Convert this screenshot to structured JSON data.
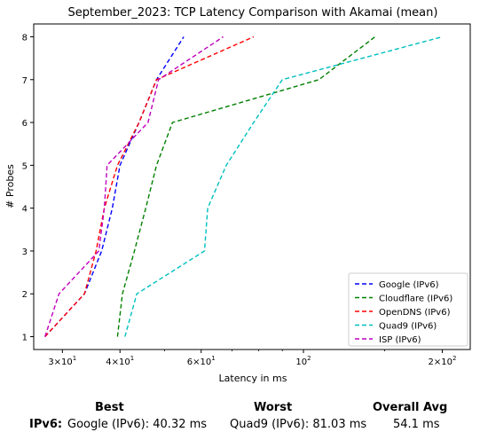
{
  "chart_data": {
    "type": "line",
    "title": "September_2023: TCP Latency Comparison with Akamai (mean)",
    "xlabel": "Latency in ms",
    "ylabel": "# Probes",
    "xscale": "log",
    "xlim": [
      26,
      230
    ],
    "ylim": [
      0.7,
      8.3
    ],
    "x_ticks": [
      {
        "value": 30,
        "base": "3",
        "exp": "1",
        "sep": "×10"
      },
      {
        "value": 40,
        "base": "4",
        "exp": "1",
        "sep": "×10"
      },
      {
        "value": 60,
        "base": "6",
        "exp": "1",
        "sep": "×10"
      },
      {
        "value": 100,
        "base": "10",
        "exp": "2",
        "sep": ""
      },
      {
        "value": 200,
        "base": "2",
        "exp": "2",
        "sep": "×10"
      }
    ],
    "y_ticks": [
      1,
      2,
      3,
      4,
      5,
      6,
      7,
      8
    ],
    "grid": false,
    "legend_position": "bottom-right",
    "series": [
      {
        "name": "Google (IPv6)",
        "color": "#0000ff",
        "x": [
          27.5,
          33.5,
          36.5,
          38.5,
          40.0,
          44.0,
          48.0,
          55.0
        ],
        "y": [
          1,
          2,
          3,
          4,
          5,
          6,
          7,
          8
        ]
      },
      {
        "name": "Cloudflare (IPv6)",
        "color": "#008000",
        "x": [
          39.5,
          40.5,
          43.0,
          45.5,
          48.0,
          52.0,
          108.0,
          143.0
        ],
        "y": [
          1,
          2,
          3,
          4,
          5,
          6,
          7,
          8
        ]
      },
      {
        "name": "OpenDNS (IPv6)",
        "color": "#ff0000",
        "x": [
          27.5,
          33.5,
          35.5,
          37.0,
          39.5,
          44.0,
          48.0,
          78.0
        ],
        "y": [
          1,
          2,
          3,
          4,
          5,
          6,
          7,
          8
        ]
      },
      {
        "name": "Quad9 (IPv6)",
        "color": "#00bfbf",
        "x": [
          41.0,
          43.5,
          61.0,
          62.0,
          68.0,
          78.0,
          90.0,
          200.0
        ],
        "y": [
          1,
          2,
          3,
          4,
          5,
          6,
          7,
          8
        ]
      },
      {
        "name": "ISP (IPv6)",
        "color": "#bf00bf",
        "x": [
          27.5,
          29.5,
          36.0,
          37.0,
          37.5,
          46.0,
          48.5,
          67.0
        ],
        "y": [
          1,
          2,
          3,
          4,
          5,
          6,
          7,
          8
        ]
      }
    ]
  },
  "summary": {
    "best_label": "Best",
    "worst_label": "Worst",
    "avg_label": "Overall Avg",
    "row_label": "IPv6:",
    "best_value": "Google (IPv6): 40.32 ms",
    "worst_value": "Quad9 (IPv6): 81.03 ms",
    "avg_value": "54.1 ms"
  }
}
